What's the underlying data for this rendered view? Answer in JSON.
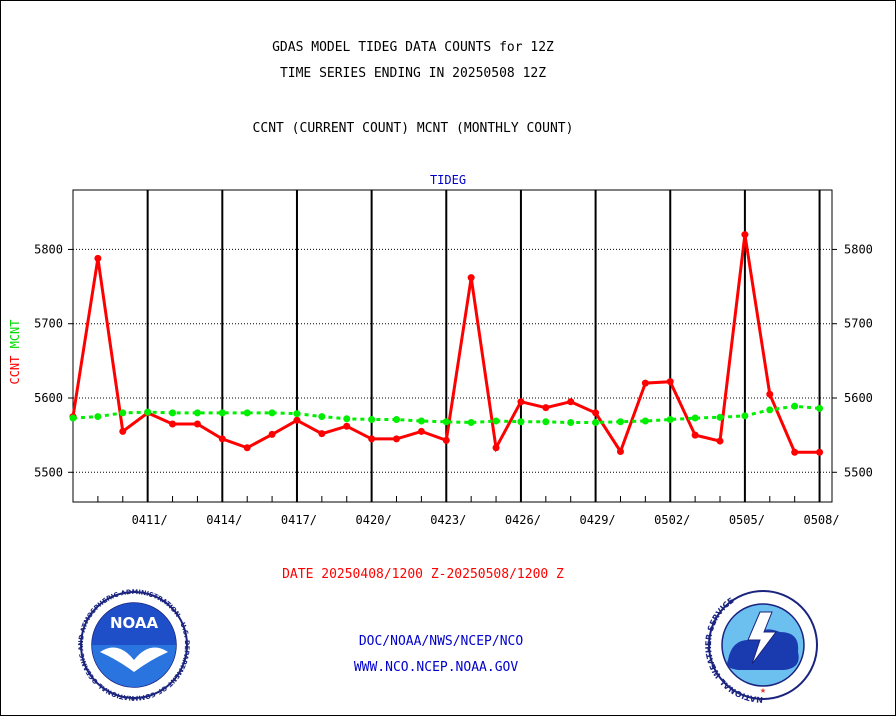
{
  "header": {
    "line1": "GDAS MODEL TIDEG DATA COUNTS for 12Z",
    "line2": "TIME SERIES ENDING IN 20250508 12Z",
    "line3": "CCNT (CURRENT COUNT) MCNT (MONTHLY COUNT)"
  },
  "footer": {
    "date_range": "DATE 20250408/1200 Z-20250508/1200 Z",
    "org_path": "DOC/NOAA/NWS/NCEP/NCO",
    "website": "WWW.NCO.NCEP.NOAA.GOV"
  },
  "logos": {
    "noaa_text": "NOAA",
    "noaa_ring": "NATIONAL OCEANIC AND ATMOSPHERIC ADMINISTRATION · U.S. DEPARTMENT OF COMMERCE ·",
    "nws_ring": "NATIONAL WEATHER SERVICE"
  },
  "colors": {
    "ccnt": "#ff0000",
    "mcnt": "#00ee00",
    "title_blue": "#0000cc"
  },
  "chart_data": {
    "type": "line",
    "title": "TIDEG",
    "ylabel_ccnt": "CCNT",
    "ylabel_mcnt": "MCNT",
    "x_start": "2025-04-08",
    "x_end": "2025-05-08",
    "ylim": [
      5460,
      5880
    ],
    "yticks": [
      5500,
      5600,
      5700,
      5800
    ],
    "xtick_labels": [
      "0411/",
      "0414/",
      "0417/",
      "0420/",
      "0423/",
      "0426/",
      "0429/",
      "0502/",
      "0505/",
      "0508/"
    ],
    "grid": true,
    "series": [
      {
        "name": "CCNT",
        "color": "#ff0000",
        "x": [
          0,
          1,
          2,
          3,
          4,
          5,
          6,
          7,
          8,
          9,
          10,
          11,
          12,
          13,
          14,
          15,
          16,
          17,
          18,
          19,
          20,
          21,
          22,
          23,
          24,
          25,
          26,
          27,
          28,
          29,
          30
        ],
        "values": [
          5575,
          5788,
          5555,
          5580,
          5565,
          5565,
          5545,
          5533,
          5551,
          5570,
          5552,
          5562,
          5545,
          5545,
          5555,
          5543,
          5762,
          5533,
          5595,
          5587,
          5595,
          5580,
          5528,
          5620,
          5622,
          5550,
          5542,
          5820,
          5605,
          5527,
          5527
        ]
      },
      {
        "name": "MCNT",
        "color": "#00ee00",
        "x": [
          0,
          1,
          2,
          3,
          4,
          5,
          6,
          7,
          8,
          9,
          10,
          11,
          12,
          13,
          14,
          15,
          16,
          17,
          18,
          19,
          20,
          21,
          22,
          23,
          24,
          25,
          26,
          27,
          28,
          29,
          30
        ],
        "values": [
          5573,
          5575,
          5580,
          5581,
          5580,
          5580,
          5580,
          5580,
          5580,
          5579,
          5575,
          5572,
          5571,
          5571,
          5569,
          5568,
          5567,
          5569,
          5568,
          5568,
          5567,
          5567,
          5568,
          5569,
          5571,
          5573,
          5574,
          5576,
          5584,
          5589,
          5586
        ]
      }
    ]
  }
}
